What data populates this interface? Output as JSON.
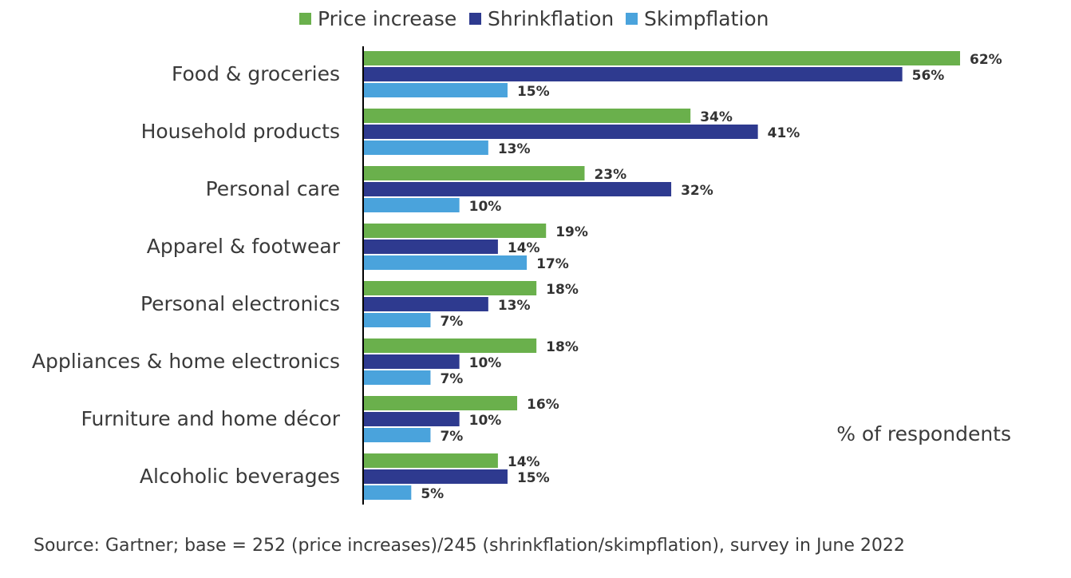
{
  "chart_data": {
    "type": "bar",
    "orientation": "horizontal",
    "categories": [
      "Food & groceries",
      "Household products",
      "Personal care",
      "Apparel & footwear",
      "Personal electronics",
      "Appliances & home electronics",
      "Furniture and home décor",
      "Alcoholic beverages"
    ],
    "series": [
      {
        "name": "Price increase",
        "color": "#6ab04c",
        "values": [
          62,
          34,
          23,
          19,
          18,
          18,
          16,
          14
        ]
      },
      {
        "name": "Shrinkflation",
        "color": "#2e3a8f",
        "values": [
          56,
          41,
          32,
          14,
          13,
          10,
          10,
          15
        ]
      },
      {
        "name": "Skimpflation",
        "color": "#4aa3dc",
        "values": [
          15,
          13,
          10,
          17,
          7,
          7,
          7,
          5
        ]
      }
    ],
    "value_suffix": "%",
    "xlim": [
      0,
      62
    ],
    "axis_note": "% of respondents",
    "legend_position": "top",
    "grid": false,
    "source": "Source: Gartner; base = 252 (price increases)/245 (shrinkflation/skimpflation), survey in June 2022"
  }
}
